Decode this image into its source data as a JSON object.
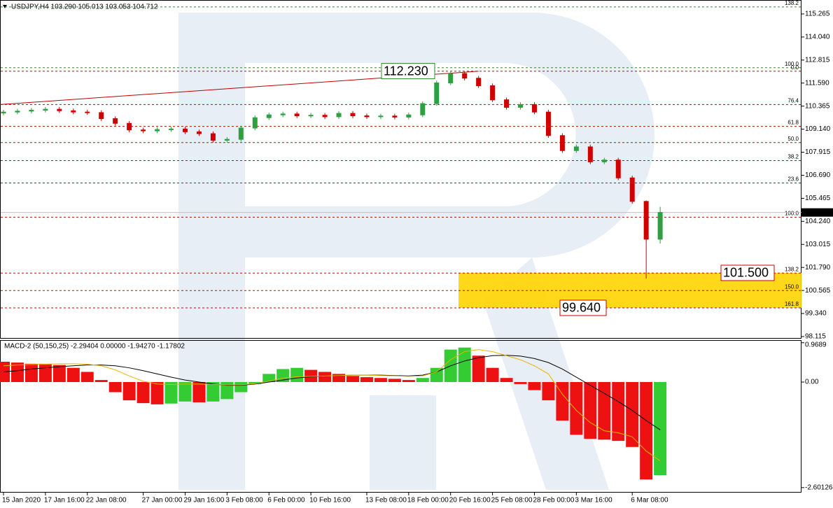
{
  "chart_data": [
    {
      "type": "candlestick",
      "title": "USDJPY,H4  103.290 105.013 103.053 104.712",
      "categories": [
        "15 Jan 2020",
        null,
        null,
        "17 Jan 16:00",
        null,
        null,
        "22 Jan 08:00",
        null,
        null,
        null,
        "27 Jan 00:00",
        null,
        null,
        "29 Jan 16:00",
        null,
        null,
        "3 Feb 08:00",
        null,
        null,
        "6 Feb 00:00",
        null,
        null,
        "10 Feb 16:00",
        null,
        null,
        null,
        "13 Feb 08:00",
        null,
        null,
        "18 Feb 00:00",
        null,
        null,
        "20 Feb 16:00",
        null,
        null,
        "25 Feb 08:00",
        null,
        null,
        "28 Feb 00:00",
        null,
        null,
        "3 Mar 16:00",
        null,
        null,
        null,
        "6 Mar 08:00",
        null,
        null
      ],
      "open": [
        110.0,
        110.05,
        110.1,
        110.15,
        110.2,
        110.12,
        110.05,
        110.02,
        109.7,
        109.45,
        109.1,
        109.05,
        109.12,
        109.15,
        109.0,
        108.9,
        108.55,
        108.6,
        109.2,
        109.75,
        109.9,
        109.95,
        109.85,
        109.88,
        109.8,
        109.98,
        109.85,
        109.8,
        109.84,
        109.78,
        109.9,
        110.5,
        111.6,
        112.1,
        111.85,
        111.45,
        110.7,
        110.3,
        110.45,
        110.05,
        108.8,
        108.0,
        108.2,
        107.4,
        107.5,
        106.55,
        105.3,
        103.29
      ],
      "high": [
        110.17,
        110.22,
        110.27,
        110.32,
        110.32,
        110.24,
        110.17,
        110.14,
        109.82,
        109.57,
        109.22,
        109.24,
        109.27,
        109.27,
        109.12,
        109.02,
        108.72,
        109.32,
        109.87,
        110.02,
        110.07,
        110.07,
        110.0,
        110.0,
        110.1,
        110.1,
        109.97,
        109.96,
        109.96,
        110.02,
        110.62,
        111.72,
        112.23,
        112.2,
        111.97,
        111.57,
        110.82,
        110.57,
        110.57,
        110.17,
        108.92,
        108.32,
        108.32,
        107.62,
        107.62,
        106.67,
        105.35,
        105.013
      ],
      "low": [
        109.88,
        109.93,
        109.98,
        110.03,
        110.0,
        109.93,
        109.9,
        109.58,
        109.33,
        108.98,
        108.93,
        108.93,
        109.0,
        108.88,
        108.78,
        108.43,
        108.43,
        108.48,
        109.08,
        109.63,
        109.78,
        109.73,
        109.73,
        109.68,
        109.68,
        109.73,
        109.68,
        109.68,
        109.66,
        109.66,
        109.78,
        110.38,
        111.48,
        111.73,
        111.33,
        110.58,
        110.18,
        110.18,
        109.93,
        108.68,
        107.88,
        107.88,
        107.28,
        107.28,
        106.43,
        105.18,
        101.2,
        103.053
      ],
      "close": [
        110.05,
        110.1,
        110.15,
        110.2,
        110.12,
        110.05,
        110.02,
        109.7,
        109.45,
        109.1,
        109.05,
        109.12,
        109.15,
        109.0,
        108.9,
        108.55,
        108.6,
        109.2,
        109.75,
        109.9,
        109.95,
        109.85,
        109.88,
        109.8,
        109.98,
        109.85,
        109.8,
        109.84,
        109.78,
        109.9,
        110.5,
        111.6,
        112.1,
        111.85,
        111.45,
        110.7,
        110.3,
        110.45,
        110.05,
        108.8,
        108.0,
        108.2,
        107.4,
        107.5,
        106.55,
        105.3,
        103.29,
        104.712
      ],
      "up_color": "#2ea043",
      "down_color": "#d00000",
      "ylim": [
        98.04,
        115.97
      ],
      "yticks": [
        115.265,
        {
          "value": 114.04,
          "label": "114.040"
        },
        112.815,
        {
          "value": 111.59,
          "label": "111.590"
        },
        110.365,
        {
          "value": 109.14,
          "label": "109.140"
        },
        107.915,
        {
          "value": 106.69,
          "label": "106.690"
        },
        105.465,
        {
          "value": 104.24,
          "label": "104.240"
        },
        103.015,
        {
          "value": 101.79,
          "label": "101.790"
        },
        100.565,
        {
          "value": 99.34,
          "label": "99.340"
        },
        98.115
      ],
      "last_price": 104.712,
      "levels": [
        {
          "value": 115.64,
          "label": "138.2",
          "color": "#2e8b2e"
        },
        {
          "value": 112.41,
          "label": "100.0",
          "color": "#2e8b2e"
        },
        {
          "value": 112.22,
          "label": "0.0",
          "color": "#d00000"
        },
        {
          "value": 110.45,
          "label": "76.4",
          "color": "#d00000"
        },
        {
          "value": 109.29,
          "label": "61.8",
          "color": "#d00000"
        },
        {
          "value": 108.43,
          "label": "50.0",
          "color": "#d00000"
        },
        {
          "value": 107.47,
          "label": "38.2",
          "color": "#d00000"
        },
        {
          "value": 106.28,
          "label": "23.6",
          "color": "#d00000"
        },
        {
          "value": 104.46,
          "label": "100.0",
          "color": "#d00000"
        },
        {
          "value": 101.49,
          "label": "138.2",
          "color": "#d00000"
        },
        {
          "value": 100.56,
          "label": "150.0",
          "color": "#d00000"
        },
        {
          "value": 99.64,
          "label": "161.8",
          "color": "#d00000"
        }
      ],
      "trendline": {
        "color": "#c00000",
        "x": [
          0,
          33
        ],
        "values": [
          110.45,
          112.22
        ]
      },
      "annotations": [
        {
          "value": 112.23,
          "label": "112.230",
          "color": "#2e8b2e"
        },
        {
          "value": 101.5,
          "label": "101.500",
          "color": "#d00000"
        },
        {
          "value": 99.64,
          "label": "99.640",
          "color": "#d00000"
        }
      ],
      "zone_color": "#ffd400"
    },
    {
      "type": "macd",
      "title": "MACD-2 (50,150,25) -2.29404 0.00000 -1.94270 -1.17802",
      "ylim": [
        -2.707,
        1.017
      ],
      "yticks": [
        0.9689,
        {
          "value": 0,
          "label": "0.00"
        },
        -2.60126
      ],
      "histogram": {
        "values": [
          0.5,
          0.48,
          0.45,
          0.45,
          0.42,
          0.35,
          0.25,
          0.05,
          -0.25,
          -0.45,
          -0.52,
          -0.55,
          -0.53,
          -0.48,
          -0.5,
          -0.48,
          -0.42,
          -0.25,
          -0.05,
          0.2,
          0.32,
          0.35,
          0.3,
          0.25,
          0.2,
          0.15,
          0.12,
          0.1,
          0.08,
          0.05,
          0.1,
          0.35,
          0.8,
          0.85,
          0.65,
          0.35,
          0.1,
          -0.05,
          -0.2,
          -0.45,
          -0.95,
          -1.3,
          -1.4,
          -1.42,
          -1.45,
          -1.6,
          -2.4,
          -2.29404
        ],
        "up_color": "#33cc33",
        "down_color": "#ee1111"
      },
      "series": [
        {
          "color": "#000000",
          "values": [
            0.25,
            0.28,
            0.32,
            0.35,
            0.38,
            0.4,
            0.42,
            0.42,
            0.4,
            0.35,
            0.28,
            0.2,
            0.12,
            0.05,
            0.0,
            -0.05,
            -0.08,
            -0.08,
            -0.05,
            0.0,
            0.05,
            0.1,
            0.13,
            0.15,
            0.16,
            0.17,
            0.17,
            0.17,
            0.16,
            0.15,
            0.17,
            0.25,
            0.4,
            0.52,
            0.6,
            0.65,
            0.66,
            0.64,
            0.58,
            0.48,
            0.32,
            0.12,
            -0.08,
            -0.28,
            -0.48,
            -0.7,
            -0.95,
            -1.17802
          ]
        },
        {
          "color": "#e8b400",
          "values": [
            0.4,
            0.42,
            0.43,
            0.44,
            0.45,
            0.45,
            0.44,
            0.4,
            0.3,
            0.15,
            0.02,
            -0.05,
            -0.06,
            -0.05,
            -0.05,
            -0.06,
            -0.07,
            -0.07,
            -0.04,
            0.02,
            0.1,
            0.13,
            0.14,
            0.15,
            0.16,
            0.17,
            0.17,
            0.16,
            0.15,
            0.14,
            0.15,
            0.25,
            0.55,
            0.75,
            0.8,
            0.75,
            0.65,
            0.55,
            0.4,
            0.2,
            -0.3,
            -0.7,
            -1.0,
            -1.2,
            -1.25,
            -1.35,
            -1.7,
            -1.9427
          ]
        }
      ]
    }
  ]
}
